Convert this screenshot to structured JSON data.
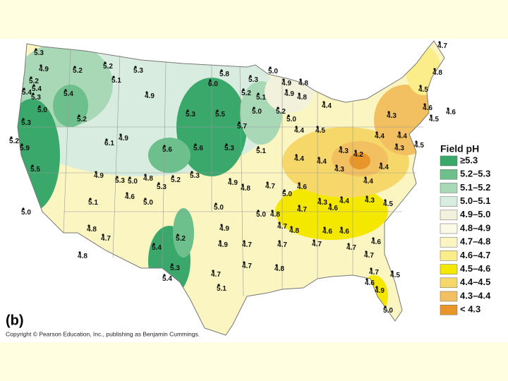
{
  "map": {
    "label": "(b)",
    "stations": [
      "5.3",
      "4.9",
      "5.2",
      "5.2",
      "5.3",
      "5.8",
      "5.1",
      "5.0",
      "5.3",
      "5.2",
      "5.4",
      "5.4",
      "5.4",
      "5.3",
      "4.9",
      "6.0",
      "4.9",
      "4.8",
      "5.2",
      "4.9",
      "4.8",
      "5.1",
      "5.0",
      "5.0",
      "5.2",
      "4.7",
      "4.8",
      "4.5",
      "4.4",
      "5.3",
      "5.5",
      "5.0",
      "4.6",
      "4.6",
      "5.2",
      "5.7",
      "4.3",
      "5.3",
      "4.5",
      "4.4",
      "4.5",
      "5.2",
      "5.9",
      "6.1",
      "4.9",
      "4.4",
      "4.4",
      "4.3",
      "4.5",
      "5.6",
      "5.6",
      "5.3",
      "5.1",
      "4.4",
      "4.4",
      "4.3",
      "4.2",
      "4.3",
      "4.4",
      "5.5",
      "4.9",
      "5.3",
      "5.0",
      "4.8",
      "5.3",
      "5.2",
      "5.3",
      "4.9",
      "4.8",
      "4.7",
      "5.0",
      "4.6",
      "4.4",
      "4.6",
      "5.1",
      "5.0",
      "5.0",
      "4.4",
      "4.3",
      "4.5",
      "4.3",
      "4.6",
      "5.0",
      "4.7",
      "5.0",
      "4.8",
      "4.9",
      "4.7",
      "4.8",
      "4.7",
      "5.2",
      "4.8",
      "4.6",
      "4.6",
      "4.7",
      "4.8",
      "5.4",
      "4.9",
      "4.7",
      "4.7",
      "4.7",
      "4.6",
      "4.7",
      "5.3",
      "4.7",
      "4.7",
      "4.8",
      "4.7",
      "4.5",
      "4.6",
      "4.9",
      "5.4",
      "5.1",
      "5.0"
    ]
  },
  "legend": {
    "title": "Field pH",
    "items": [
      {
        "label": "≥5.3",
        "color": "#3aa86b"
      },
      {
        "label": "5.2–5.3",
        "color": "#6dbf8c"
      },
      {
        "label": "5.1–5.2",
        "color": "#a8d8b6"
      },
      {
        "label": "5.0–5.1",
        "color": "#d8ede0"
      },
      {
        "label": "4.9–5.0",
        "color": "#f2f2dc"
      },
      {
        "label": "4.8–4.9",
        "color": "#fafae6"
      },
      {
        "label": "4.7–4.8",
        "color": "#fbf5c2"
      },
      {
        "label": "4.6–4.7",
        "color": "#fbee8a"
      },
      {
        "label": "4.5–4.6",
        "color": "#f5e800"
      },
      {
        "label": "4.4–4.5",
        "color": "#f6d86a"
      },
      {
        "label": "4.3–4.4",
        "color": "#f2c060"
      },
      {
        "label": "< 4.3",
        "color": "#e8962a"
      }
    ]
  },
  "copyright": "Copyright © Pearson Education, Inc., publishing as Benjamin Cummings."
}
